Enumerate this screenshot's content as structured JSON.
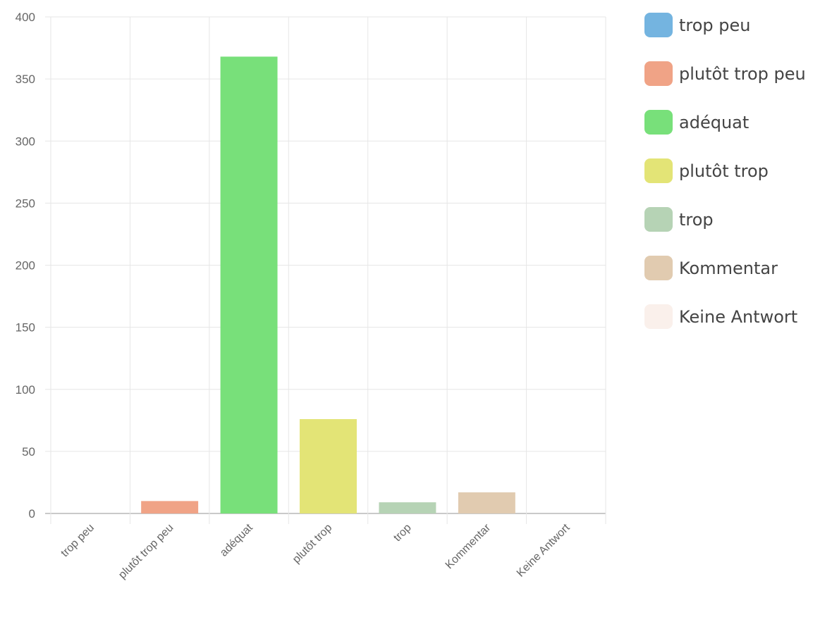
{
  "chart_data": {
    "type": "bar",
    "categories": [
      "trop peu",
      "plutôt trop peu",
      "adéquat",
      "plutôt trop",
      "trop",
      "Kommentar",
      "Keine Antwort"
    ],
    "values": [
      0,
      10,
      368,
      76,
      9,
      17,
      0
    ],
    "colors": [
      "#74b4e0",
      "#f0a386",
      "#78e07a",
      "#e3e476",
      "#b6d3b5",
      "#e1cbb0",
      "#faf0eb"
    ],
    "ylim": [
      0,
      400
    ],
    "yticks": [
      0,
      50,
      100,
      150,
      200,
      250,
      300,
      350,
      400
    ],
    "grid": true,
    "legend_position": "right",
    "title": "",
    "xlabel": "",
    "ylabel": ""
  }
}
